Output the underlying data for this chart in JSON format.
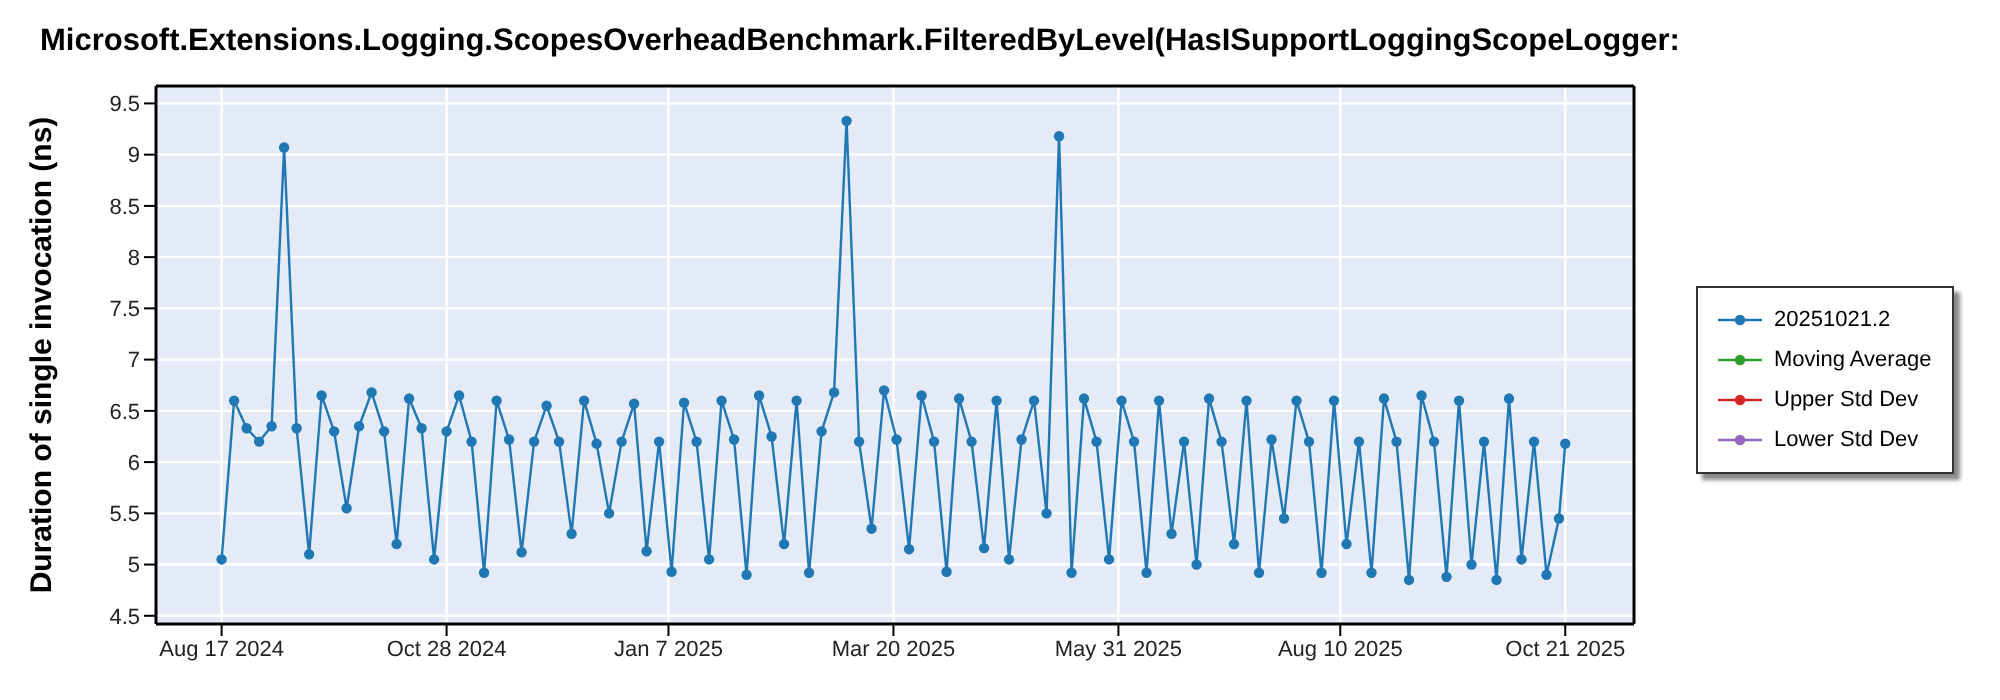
{
  "chart_data": {
    "type": "line",
    "title": "Microsoft.Extensions.Logging.ScopesOverheadBenchmark.FilteredByLevel(HasISupportLoggingScopeLogger:",
    "ylabel": "Duration of single invocation (ns)",
    "x": [
      "2024-08-17",
      "2024-08-21",
      "2024-08-25",
      "2024-08-29",
      "2024-09-02",
      "2024-09-06",
      "2024-09-10",
      "2024-09-14",
      "2024-09-18",
      "2024-09-22",
      "2024-09-26",
      "2024-09-30",
      "2024-10-04",
      "2024-10-08",
      "2024-10-12",
      "2024-10-16",
      "2024-10-20",
      "2024-10-24",
      "2024-10-28",
      "2024-11-01",
      "2024-11-05",
      "2024-11-09",
      "2024-11-13",
      "2024-11-17",
      "2024-11-21",
      "2024-11-25",
      "2024-11-29",
      "2024-12-03",
      "2024-12-07",
      "2024-12-11",
      "2024-12-15",
      "2024-12-19",
      "2024-12-23",
      "2024-12-27",
      "2024-12-31",
      "2025-01-04",
      "2025-01-08",
      "2025-01-12",
      "2025-01-16",
      "2025-01-20",
      "2025-01-24",
      "2025-01-28",
      "2025-02-01",
      "2025-02-05",
      "2025-02-09",
      "2025-02-13",
      "2025-02-17",
      "2025-02-21",
      "2025-02-25",
      "2025-03-01",
      "2025-03-05",
      "2025-03-09",
      "2025-03-13",
      "2025-03-17",
      "2025-03-21",
      "2025-03-25",
      "2025-03-29",
      "2025-04-02",
      "2025-04-06",
      "2025-04-10",
      "2025-04-14",
      "2025-04-18",
      "2025-04-22",
      "2025-04-26",
      "2025-04-30",
      "2025-05-04",
      "2025-05-08",
      "2025-05-12",
      "2025-05-16",
      "2025-05-20",
      "2025-05-24",
      "2025-05-28",
      "2025-06-01",
      "2025-06-05",
      "2025-06-09",
      "2025-06-13",
      "2025-06-17",
      "2025-06-21",
      "2025-06-25",
      "2025-06-29",
      "2025-07-03",
      "2025-07-07",
      "2025-07-11",
      "2025-07-15",
      "2025-07-19",
      "2025-07-23",
      "2025-07-27",
      "2025-07-31",
      "2025-08-04",
      "2025-08-08",
      "2025-08-12",
      "2025-08-16",
      "2025-08-20",
      "2025-08-24",
      "2025-08-28",
      "2025-09-01",
      "2025-09-05",
      "2025-09-09",
      "2025-09-13",
      "2025-09-17",
      "2025-09-21",
      "2025-09-25",
      "2025-09-29",
      "2025-10-03",
      "2025-10-07",
      "2025-10-11",
      "2025-10-15",
      "2025-10-19",
      "2025-10-21"
    ],
    "series": [
      {
        "name": "20251021.2",
        "color": "#1f77b4",
        "values": [
          5.05,
          6.6,
          6.33,
          6.2,
          6.35,
          9.07,
          6.33,
          5.1,
          6.65,
          6.3,
          5.55,
          6.35,
          6.68,
          6.3,
          5.2,
          6.62,
          6.33,
          5.05,
          6.3,
          6.65,
          6.2,
          4.92,
          6.6,
          6.22,
          5.12,
          6.2,
          6.55,
          6.2,
          5.3,
          6.6,
          6.18,
          5.5,
          6.2,
          6.57,
          5.13,
          6.2,
          4.93,
          6.58,
          6.2,
          5.05,
          6.6,
          6.22,
          4.9,
          6.65,
          6.25,
          5.2,
          6.6,
          4.92,
          6.3,
          6.68,
          9.33,
          6.2,
          5.35,
          6.7,
          6.22,
          5.15,
          6.65,
          6.2,
          4.93,
          6.62,
          6.2,
          5.16,
          6.6,
          5.05,
          6.22,
          6.6,
          5.5,
          9.18,
          4.92,
          6.62,
          6.2,
          5.05,
          6.6,
          6.2,
          4.92,
          6.6,
          5.3,
          6.2,
          5.0,
          6.62,
          6.2,
          5.2,
          6.6,
          4.92,
          6.22,
          5.45,
          6.6,
          6.2,
          4.92,
          6.6,
          5.2,
          6.2,
          4.92,
          6.62,
          6.2,
          4.85,
          6.65,
          6.2,
          4.88,
          6.6,
          5.0,
          6.2,
          4.85,
          6.62,
          5.05,
          6.2,
          4.9,
          5.45,
          6.18
        ]
      },
      {
        "name": "Moving Average",
        "color": "#2ca02c",
        "values": [
          null,
          null,
          null,
          null,
          null,
          null,
          null,
          null,
          null,
          null,
          null,
          null,
          null,
          null,
          null,
          null,
          null,
          null,
          null,
          null,
          null,
          null,
          null,
          null,
          null,
          null,
          null,
          null,
          null,
          null,
          null,
          null,
          null,
          null,
          null,
          null,
          null,
          null,
          null,
          null,
          null,
          null,
          null,
          null,
          null,
          null,
          null,
          null,
          null,
          null,
          null,
          null,
          null,
          null,
          null,
          null,
          null,
          null,
          null,
          null,
          null,
          null,
          null,
          null,
          null,
          null,
          null,
          null,
          null,
          null,
          null,
          null,
          null,
          null,
          null,
          null,
          null,
          null,
          null,
          null,
          null,
          null,
          null,
          null,
          null,
          null,
          null,
          null,
          null,
          null,
          null,
          null,
          null,
          null,
          null,
          null,
          null,
          null,
          null,
          null,
          null,
          null,
          null,
          null,
          null,
          null,
          null,
          null,
          null
        ]
      },
      {
        "name": "Upper Std Dev",
        "color": "#d62728",
        "values": [
          null,
          null,
          null,
          null,
          null,
          null,
          null,
          null,
          null,
          null,
          null,
          null,
          null,
          null,
          null,
          null,
          null,
          null,
          null,
          null,
          null,
          null,
          null,
          null,
          null,
          null,
          null,
          null,
          null,
          null,
          null,
          null,
          null,
          null,
          null,
          null,
          null,
          null,
          null,
          null,
          null,
          null,
          null,
          null,
          null,
          null,
          null,
          null,
          null,
          null,
          null,
          null,
          null,
          null,
          null,
          null,
          null,
          null,
          null,
          null,
          null,
          null,
          null,
          null,
          null,
          null,
          null,
          null,
          null,
          null,
          null,
          null,
          null,
          null,
          null,
          null,
          null,
          null,
          null,
          null,
          null,
          null,
          null,
          null,
          null,
          null,
          null,
          null,
          null,
          null,
          null,
          null,
          null,
          null,
          null,
          null,
          null,
          null,
          null,
          null,
          null,
          null,
          null,
          null,
          null,
          null,
          null,
          null,
          null
        ]
      },
      {
        "name": "Lower Std Dev",
        "color": "#9467bd",
        "values": [
          null,
          null,
          null,
          null,
          null,
          null,
          null,
          null,
          null,
          null,
          null,
          null,
          null,
          null,
          null,
          null,
          null,
          null,
          null,
          null,
          null,
          null,
          null,
          null,
          null,
          null,
          null,
          null,
          null,
          null,
          null,
          null,
          null,
          null,
          null,
          null,
          null,
          null,
          null,
          null,
          null,
          null,
          null,
          null,
          null,
          null,
          null,
          null,
          null,
          null,
          null,
          null,
          null,
          null,
          null,
          null,
          null,
          null,
          null,
          null,
          null,
          null,
          null,
          null,
          null,
          null,
          null,
          null,
          null,
          null,
          null,
          null,
          null,
          null,
          null,
          null,
          null,
          null,
          null,
          null,
          null,
          null,
          null,
          null,
          null,
          null,
          null,
          null,
          null,
          null,
          null,
          null,
          null,
          null,
          null,
          null,
          null,
          null,
          null,
          null,
          null,
          null,
          null,
          null,
          null,
          null,
          null,
          null,
          null
        ]
      }
    ],
    "xlim": [
      "2024-07-27",
      "2025-11-12"
    ],
    "xticks": [
      {
        "value": "2024-08-17",
        "label": "Aug 17 2024"
      },
      {
        "value": "2024-10-28",
        "label": "Oct 28 2024"
      },
      {
        "value": "2025-01-07",
        "label": "Jan 7 2025"
      },
      {
        "value": "2025-03-20",
        "label": "Mar 20 2025"
      },
      {
        "value": "2025-05-31",
        "label": "May 31 2025"
      },
      {
        "value": "2025-08-10",
        "label": "Aug 10 2025"
      },
      {
        "value": "2025-10-21",
        "label": "Oct 21 2025"
      }
    ],
    "ylim": [
      4.42,
      9.67
    ],
    "yticks": [
      4.5,
      5,
      5.5,
      6,
      6.5,
      7,
      7.5,
      8,
      8.5,
      9,
      9.5
    ],
    "grid": true,
    "legend": "right",
    "marker": "circle",
    "line_style": "solid"
  }
}
